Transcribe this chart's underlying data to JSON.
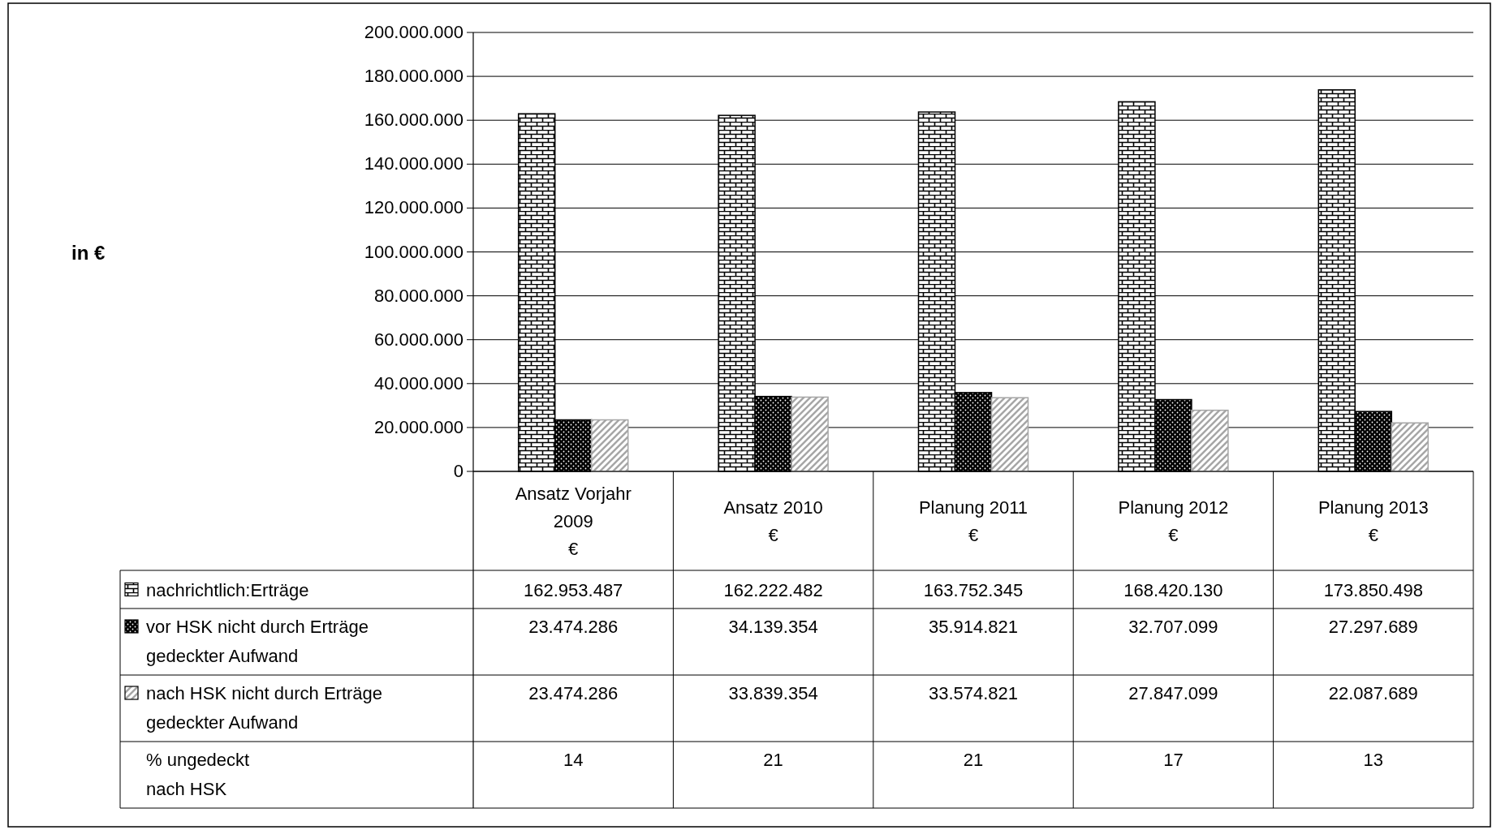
{
  "chart_data": {
    "type": "bar",
    "categories": [
      "Ansatz Vorjahr\n2009\n€",
      "Ansatz 2010\n€",
      "Planung 2011\n€",
      "Planung 2012\n€",
      "Planung 2013\n€"
    ],
    "series": [
      {
        "name": "nachrichtlich:Erträge",
        "color": "#000000",
        "values": [
          162953487,
          162222482,
          163752345,
          168420130,
          173850498
        ],
        "value_labels": [
          "162.953.487",
          "162.222.482",
          "163.752.345",
          "168.420.130",
          "173.850.498"
        ]
      },
      {
        "name": "vor HSK nicht durch Erträge\ngedeckter Aufwand",
        "color": "#000000",
        "values": [
          23474286,
          34139354,
          35914821,
          32707099,
          27297689
        ],
        "value_labels": [
          "23.474.286",
          "34.139.354",
          "35.914.821",
          "32.707.099",
          "27.297.689"
        ]
      },
      {
        "name": "nach HSK nicht durch Erträge\ngedeckter Aufwand",
        "color": "#a6a6a6",
        "values": [
          23474286,
          33839354,
          33574821,
          27847099,
          22087689
        ],
        "value_labels": [
          "23.474.286",
          "33.839.354",
          "33.574.821",
          "27.847.099",
          "22.087.689"
        ]
      }
    ],
    "annotations": [
      "in €",
      "% ungedeckt\nnach HSK",
      "14",
      "21",
      "21",
      "17",
      "13"
    ],
    "ylim": [
      0,
      200000000
    ],
    "yticks": [
      {
        "value": 0,
        "label": "0"
      },
      {
        "value": 20000000,
        "label": "20.000.000"
      },
      {
        "value": 40000000,
        "label": "40.000.000"
      },
      {
        "value": 60000000,
        "label": "60.000.000"
      },
      {
        "value": 80000000,
        "label": "80.000.000"
      },
      {
        "value": 100000000,
        "label": "100.000.000"
      },
      {
        "value": 120000000,
        "label": "120.000.000"
      },
      {
        "value": 140000000,
        "label": "140.000.000"
      },
      {
        "value": 160000000,
        "label": "160.000.000"
      },
      {
        "value": 180000000,
        "label": "180.000.000"
      },
      {
        "value": 200000000,
        "label": "200.000.000"
      }
    ],
    "grid": "y",
    "legend": "bottom"
  }
}
